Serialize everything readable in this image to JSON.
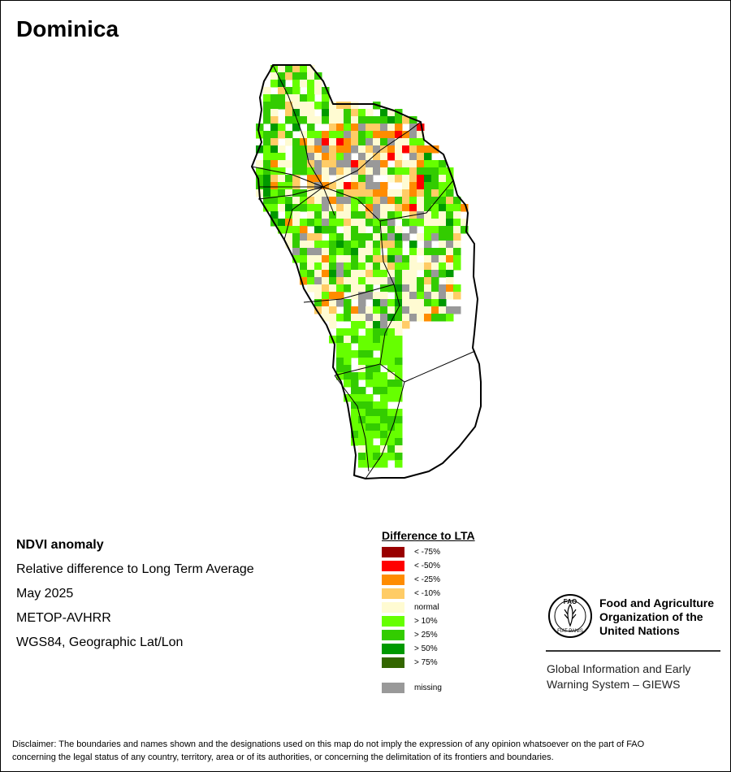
{
  "map": {
    "title": "Dominica",
    "colors": {
      "lt75": "#990000",
      "lt50": "#ff0000",
      "lt25": "#ff8c00",
      "lt10": "#ffcc66",
      "normal": "#fffbd2",
      "gt10": "#66ff00",
      "gt25": "#33cc00",
      "gt50": "#009900",
      "gt75": "#336600",
      "missing": "#999999"
    }
  },
  "info": {
    "line1": "NDVI anomaly",
    "line2": "Relative difference to Long Term Average",
    "line3": "May 2025",
    "line4": "METOP-AVHRR",
    "line5": "WGS84, Geographic Lat/Lon"
  },
  "legend": {
    "title": "Difference to LTA",
    "items": [
      {
        "label": "< -75%",
        "color": "#990000"
      },
      {
        "label": "< -50%",
        "color": "#ff0000"
      },
      {
        "label": "< -25%",
        "color": "#ff8c00"
      },
      {
        "label": "< -10%",
        "color": "#ffcc66"
      },
      {
        "label": "normal",
        "color": "#fffbd2"
      },
      {
        "label": "> 10%",
        "color": "#66ff00"
      },
      {
        "label": "> 25%",
        "color": "#33cc00"
      },
      {
        "label": "> 50%",
        "color": "#009900"
      },
      {
        "label": "> 75%",
        "color": "#336600"
      }
    ],
    "missing": {
      "label": "missing",
      "color": "#999999"
    }
  },
  "logo": {
    "letters": "FAO",
    "motto": "FIAT PANIS",
    "org_line1": "Food and Agriculture",
    "org_line2": "Organization of the",
    "org_line3": "United Nations",
    "giews_line1": "Global Information and Early",
    "giews_line2": "Warning System – GIEWS"
  },
  "disclaimer": {
    "line1": "Disclaimer: The boundaries and names shown and the designations used on this map do not imply the expression of any opinion whatsoever on the part of FAO",
    "line2": "concerning the legal status of any country, territory, area or of its authorities, or concerning the delimitation of its frontiers and boundaries."
  }
}
